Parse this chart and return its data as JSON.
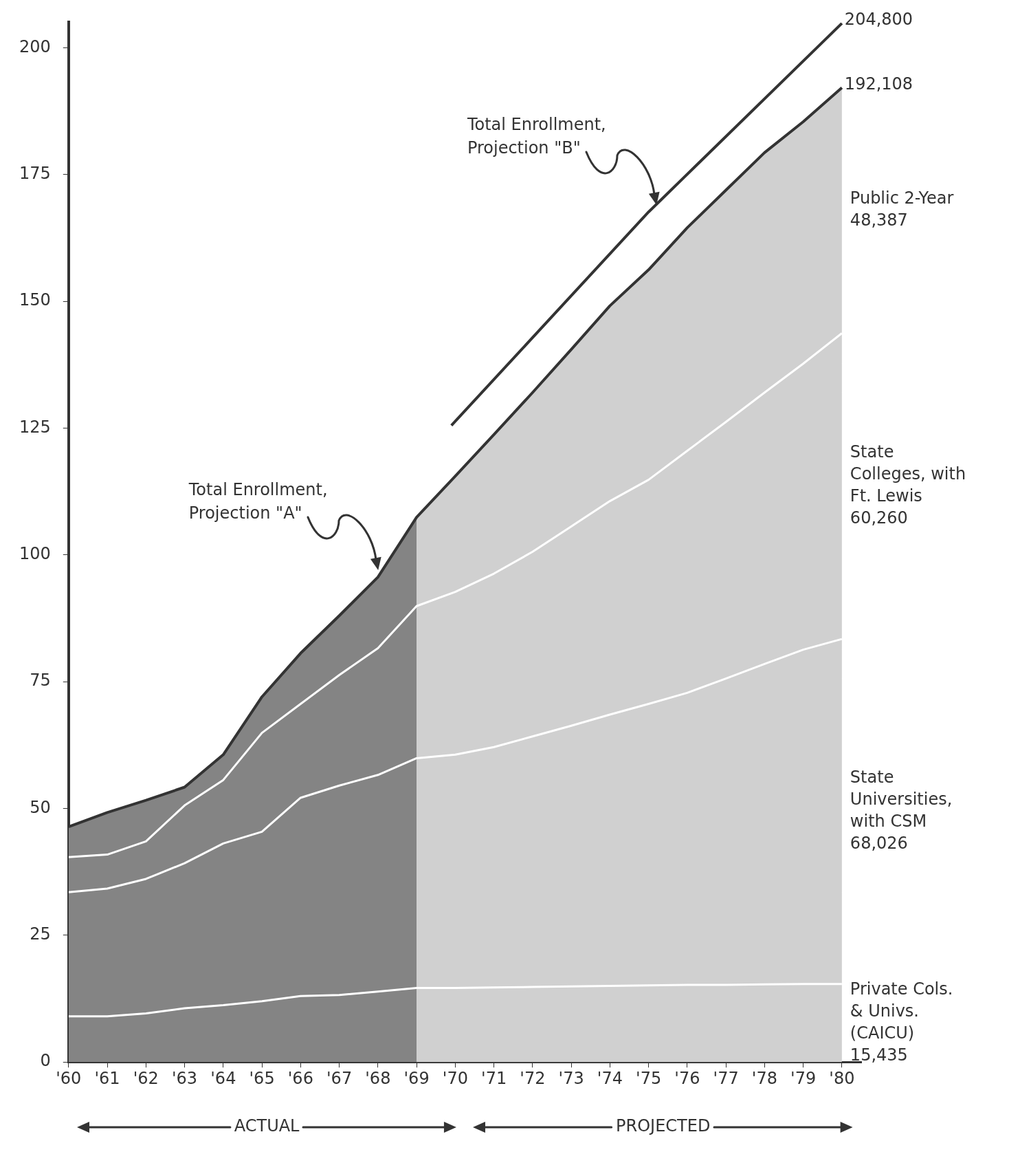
{
  "chart_data": {
    "type": "area",
    "stacked": true,
    "x": [
      1960,
      1961,
      1962,
      1963,
      1964,
      1965,
      1966,
      1967,
      1968,
      1969,
      1970,
      1971,
      1972,
      1973,
      1974,
      1975,
      1976,
      1977,
      1978,
      1979,
      1980
    ],
    "xlim": [
      1960,
      1980.5
    ],
    "xticks": [
      {
        "value": 1960,
        "label": "'60"
      },
      {
        "value": 1961,
        "label": "'61"
      },
      {
        "value": 1962,
        "label": "'62"
      },
      {
        "value": 1963,
        "label": "'63"
      },
      {
        "value": 1964,
        "label": "'64"
      },
      {
        "value": 1965,
        "label": "'65"
      },
      {
        "value": 1966,
        "label": "'66"
      },
      {
        "value": 1967,
        "label": "'67"
      },
      {
        "value": 1968,
        "label": "'68"
      },
      {
        "value": 1969,
        "label": "'69"
      },
      {
        "value": 1970,
        "label": "'70"
      },
      {
        "value": 1971,
        "label": "'71"
      },
      {
        "value": 1972,
        "label": "'72"
      },
      {
        "value": 1973,
        "label": "'73"
      },
      {
        "value": 1974,
        "label": "'74"
      },
      {
        "value": 1975,
        "label": "'75"
      },
      {
        "value": 1976,
        "label": "'76"
      },
      {
        "value": 1977,
        "label": "'77"
      },
      {
        "value": 1978,
        "label": "'78"
      },
      {
        "value": 1979,
        "label": "'79"
      },
      {
        "value": 1980,
        "label": "'80"
      }
    ],
    "ylim": [
      0,
      205
    ],
    "yticks": [
      0,
      25,
      50,
      75,
      100,
      125,
      150,
      175,
      200
    ],
    "series": [
      {
        "name": "Private Cols. & Univs. (CAICU) 15,435",
        "color": "#bdbdbd",
        "values": [
          9.0,
          9.0,
          9.6,
          10.6,
          11.2,
          12.0,
          13.0,
          13.2,
          13.9,
          14.6,
          14.6,
          14.7,
          14.8,
          14.9,
          15.0,
          15.1,
          15.2,
          15.2,
          15.3,
          15.4,
          15.4
        ]
      },
      {
        "name": "State Universities, with CSM 68,026",
        "color": "#bdbdbd",
        "values": [
          24.5,
          25.2,
          26.5,
          28.6,
          31.9,
          33.4,
          39.1,
          41.3,
          42.7,
          45.3,
          46.0,
          47.4,
          49.4,
          51.4,
          53.5,
          55.5,
          57.6,
          60.4,
          63.2,
          65.9,
          68.0
        ]
      },
      {
        "name": "State Colleges, with Ft. Lewis 60,260",
        "color": "#bdbdbd",
        "values": [
          6.9,
          6.7,
          7.4,
          11.4,
          12.5,
          19.5,
          18.5,
          21.8,
          25.0,
          30.0,
          32.1,
          34.2,
          36.4,
          39.3,
          42.1,
          44.2,
          47.7,
          50.6,
          53.5,
          56.4,
          60.3
        ]
      },
      {
        "name": "Public 2-Year 48,387",
        "color": "#bdbdbd",
        "values": [
          6.0,
          8.3,
          8.1,
          3.6,
          5.0,
          7.1,
          10.0,
          11.7,
          14.0,
          17.5,
          22.8,
          27.4,
          31.4,
          34.9,
          38.5,
          41.4,
          44.0,
          45.7,
          47.3,
          47.7,
          48.4
        ]
      },
      {
        "type": "line",
        "color": "#333333",
        "x": [
          1969.9,
          1975,
          1980
        ],
        "values": [
          125.5,
          167.6,
          204.8
        ]
      }
    ],
    "bands": [
      {
        "axis": "x",
        "from": 1960,
        "to": 1969,
        "color": "#4a4a4a"
      },
      {
        "axis": "x",
        "from": 1969,
        "to": 1980,
        "color": "#e2e2e2"
      }
    ],
    "annotations": [
      "Total Enrollment, Projection \"A\"",
      "Total Enrollment, Projection \"B\"",
      "ACTUAL",
      "PROJECTED",
      {
        "text": "204,800",
        "x": 1980,
        "y": 204.8
      },
      {
        "text": "192,108",
        "x": 1980,
        "y": 192.1
      }
    ]
  }
}
